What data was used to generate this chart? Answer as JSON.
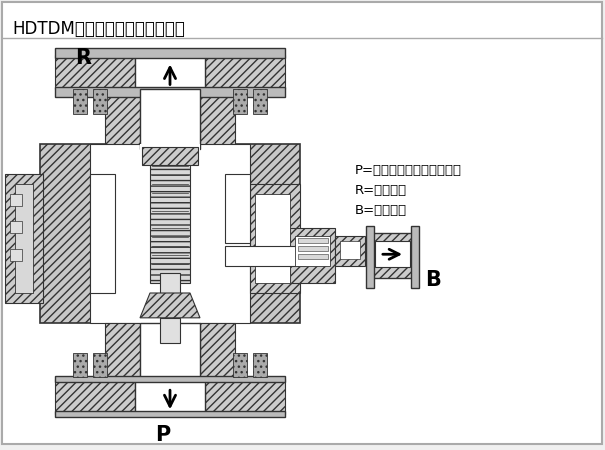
{
  "title": "HDTDM自动再循环阀示图如下：",
  "label_P": "P",
  "label_R": "R",
  "label_B": "B",
  "legend_lines": [
    "P=阀门入口（接泵的出口）",
    "R=阀门出口",
    "B=旁路出口"
  ],
  "bg_color": "#f0f0f0",
  "inner_bg": "#ffffff",
  "hatch_fill": "#d8d8d8",
  "white": "#ffffff",
  "dark_hatch": "#c0c0c0",
  "line_color": "#333333",
  "title_fontsize": 12,
  "label_fontsize": 13,
  "legend_fontsize": 9.5
}
